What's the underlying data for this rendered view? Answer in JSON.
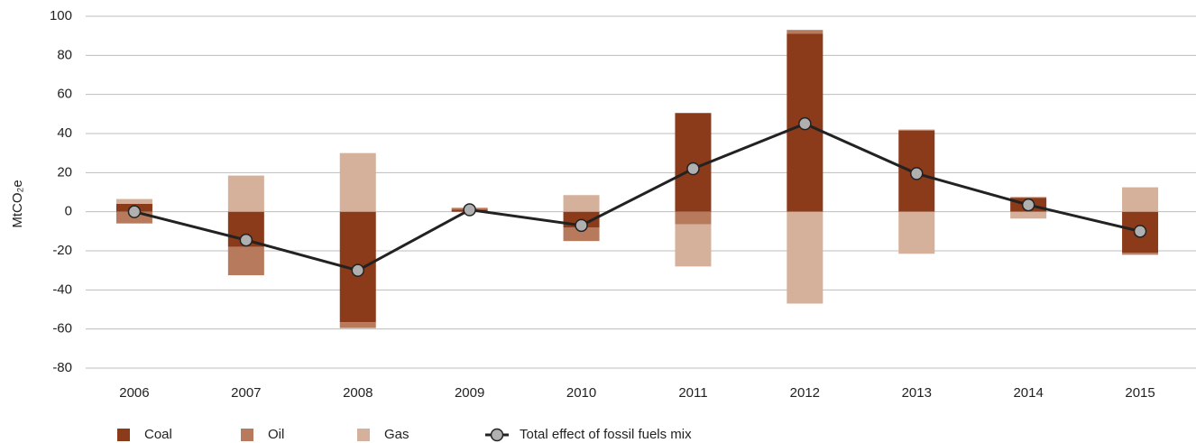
{
  "chart_data": {
    "type": "bar",
    "stacked": true,
    "y_label": "MtCO₂e",
    "categories": [
      "2006",
      "2007",
      "2008",
      "2009",
      "2010",
      "2011",
      "2012",
      "2013",
      "2014",
      "2015"
    ],
    "series": [
      {
        "name": "Coal",
        "color": "#8b3a1a",
        "values": [
          4,
          -18,
          -56.5,
          1,
          -8,
          50.5,
          91,
          41.5,
          7,
          -21
        ]
      },
      {
        "name": "Oil",
        "color": "#b87a5c",
        "values": [
          -6,
          -14.5,
          -3,
          1,
          -7,
          -6.5,
          2,
          0.5,
          0.5,
          -1
        ]
      },
      {
        "name": "Gas",
        "color": "#d5b09a",
        "values": [
          2.5,
          18.5,
          30,
          0,
          8.5,
          -21.5,
          -47,
          -21.5,
          -3.5,
          12.5
        ]
      },
      {
        "name": "Total effect of fossil fuels mix",
        "type": "line",
        "color": "#222222",
        "marker_color": "#b0b0b0",
        "values": [
          0,
          -14.5,
          -30,
          1,
          -7,
          22,
          45,
          19.5,
          3.5,
          -10
        ]
      }
    ],
    "ylim": [
      -80,
      100
    ],
    "yticks": [
      -80,
      -60,
      -40,
      -20,
      0,
      20,
      40,
      60,
      80,
      100
    ],
    "grid": true,
    "legend": "bottom"
  }
}
